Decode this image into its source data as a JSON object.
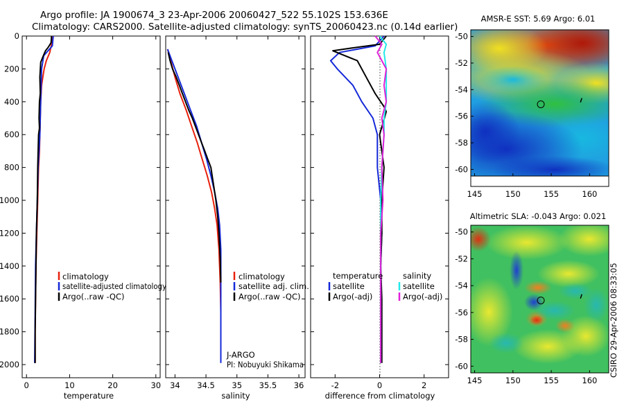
{
  "title_line1": "Argo profile: JA 1900674_3 23-Apr-2006 20060427_522 55.102S 153.636E",
  "title_line2": "Climatology: CARS2000. Satellite-adjusted climatology: synTS_20060423.nc (0.14d earlier)",
  "side_stamp": "CSIRO 29-Apr-2006 08:33:05",
  "colors": {
    "climatology": "#e8200c",
    "satellite": "#1428d8",
    "argo": "#000000",
    "sal_satellite": "#22e8e8",
    "sal_argo": "#e020d8"
  },
  "chart_data": [
    {
      "type": "line",
      "xlabel": "temperature",
      "ylabel": "",
      "xlim": [
        -1,
        31
      ],
      "ylim": [
        2080,
        0
      ],
      "xticks": [
        "0",
        "10",
        "20",
        "30"
      ],
      "yticks": [
        "0",
        "200",
        "400",
        "600",
        "800",
        "1000",
        "1200",
        "1400",
        "1600",
        "1800",
        "2000"
      ],
      "legend": [
        "climatology",
        "satellite-adjusted climatology",
        "Argo(..raw -QC)"
      ],
      "series": [
        {
          "name": "climatology",
          "color": "#e8200c",
          "x": [
            5.9,
            5.8,
            5.4,
            4.6,
            4.1,
            3.8,
            3.5,
            3.3,
            3.2,
            3.1,
            3.0,
            2.8,
            2.6,
            2.4,
            2.2,
            2.1,
            2.0,
            2.0
          ],
          "y": [
            0,
            50,
            100,
            150,
            200,
            250,
            300,
            400,
            500,
            600,
            700,
            800,
            1000,
            1200,
            1400,
            1600,
            1800,
            1990
          ]
        },
        {
          "name": "satellite-adjusted climatology",
          "color": "#1428d8",
          "x": [
            6.2,
            6.0,
            4.0,
            3.5,
            3.4,
            3.3,
            3.2,
            3.1,
            2.9,
            2.7,
            2.5,
            2.3,
            2.1,
            2.0,
            1.9
          ],
          "y": [
            0,
            60,
            120,
            200,
            300,
            400,
            500,
            600,
            700,
            800,
            1000,
            1200,
            1400,
            1700,
            1990
          ]
        },
        {
          "name": "Argo(..raw -QC)",
          "color": "#000000",
          "x": [
            5.8,
            5.7,
            5.0,
            4.4,
            3.9,
            3.3,
            3.1,
            3.2,
            3.0,
            2.9,
            3.0,
            2.8,
            2.7,
            2.6,
            2.5,
            2.3,
            2.2,
            2.1,
            2.0,
            2.0
          ],
          "y": [
            0,
            40,
            70,
            90,
            120,
            160,
            250,
            350,
            400,
            500,
            560,
            600,
            700,
            800,
            1000,
            1200,
            1400,
            1600,
            1800,
            1990
          ]
        }
      ]
    },
    {
      "type": "line",
      "xlabel": "salinity",
      "ylabel": "",
      "xlim": [
        33.85,
        36.1
      ],
      "ylim": [
        2080,
        0
      ],
      "xticks": [
        "34",
        "34.5",
        "35",
        "35.5",
        "36"
      ],
      "legend": [
        "climatology",
        "satellite adj. clim.",
        "Argo(..raw -QC)"
      ],
      "annotations": [
        "J-ARGO",
        "PI: Nobuyuki Shikama"
      ],
      "series": [
        {
          "name": "climatology",
          "color": "#e8200c",
          "x": [
            33.88,
            33.93,
            34.0,
            34.08,
            34.18,
            34.27,
            34.36,
            34.44,
            34.52,
            34.59,
            34.64,
            34.68,
            34.71,
            34.73,
            34.74
          ],
          "y": [
            80,
            150,
            250,
            350,
            450,
            550,
            650,
            750,
            850,
            950,
            1050,
            1150,
            1300,
            1500,
            1680
          ]
        },
        {
          "name": "satellite adj. clim.",
          "color": "#1428d8",
          "x": [
            33.88,
            33.95,
            34.05,
            34.15,
            34.25,
            34.35,
            34.43,
            34.51,
            34.58,
            34.64,
            34.69,
            34.72,
            34.74,
            34.74,
            34.74
          ],
          "y": [
            80,
            150,
            250,
            350,
            450,
            550,
            650,
            750,
            850,
            950,
            1050,
            1150,
            1300,
            1500,
            1990
          ]
        },
        {
          "name": "Argo(..raw -QC)",
          "color": "#000000",
          "x": [
            33.89,
            33.92,
            33.96,
            34.02,
            34.07,
            34.12,
            34.17,
            34.22,
            34.28,
            34.33,
            34.38,
            34.43,
            34.48,
            34.53,
            34.58,
            34.62,
            34.66,
            34.69,
            34.71,
            34.73,
            34.74
          ],
          "y": [
            100,
            150,
            200,
            250,
            300,
            350,
            400,
            450,
            500,
            550,
            600,
            650,
            700,
            750,
            800,
            900,
            1000,
            1100,
            1200,
            1350,
            1500
          ]
        }
      ]
    },
    {
      "type": "line",
      "xlabel": "difference from climatology",
      "ylabel": "",
      "xlim": [
        -3.1,
        3.1
      ],
      "ylim": [
        2080,
        0
      ],
      "xticks": [
        "-2",
        "0",
        "2"
      ],
      "legend": [
        "temperature",
        "satellite",
        "Argo(-adj)",
        "salinity",
        "satellite",
        "Argo(-adj)"
      ],
      "series": [
        {
          "name": "temperature satellite",
          "color": "#1428d8",
          "x": [
            0.2,
            -0.2,
            -1.8,
            -2.2,
            -1.9,
            -1.2,
            -0.8,
            -0.3,
            -0.1,
            -0.1,
            0.05,
            0.1,
            0.05,
            0.05,
            0.05,
            0.05
          ],
          "y": [
            0,
            60,
            100,
            150,
            200,
            300,
            400,
            500,
            600,
            800,
            1000,
            1200,
            1400,
            1600,
            1800,
            1990
          ]
        },
        {
          "name": "temperature Argo(-adj)",
          "color": "#000000",
          "x": [
            0.3,
            0.0,
            -1.1,
            -2.1,
            -1.0,
            -0.6,
            -0.2,
            0.2,
            0.3,
            0.0,
            0.2,
            0.1,
            0.1,
            0.05,
            0.1,
            0.1
          ],
          "y": [
            0,
            50,
            70,
            90,
            150,
            250,
            350,
            430,
            460,
            600,
            800,
            1000,
            1200,
            1400,
            1600,
            1990
          ]
        },
        {
          "name": "salinity satellite",
          "color": "#22e8e8",
          "x": [
            0.0,
            0.3,
            0.2,
            0.3,
            0.3,
            0.3,
            0.2,
            0.2,
            0.1,
            0.05,
            0.05,
            0.05
          ],
          "y": [
            0,
            50,
            100,
            200,
            300,
            400,
            500,
            600,
            800,
            1000,
            1400,
            1990
          ]
        },
        {
          "name": "salinity Argo(-adj)",
          "color": "#e020d8",
          "x": [
            -0.2,
            0.1,
            -0.1,
            0.3,
            0.2,
            0.3,
            0.1,
            0.2,
            0.1,
            0.15,
            0.05,
            0.05,
            0.05
          ],
          "y": [
            0,
            50,
            100,
            200,
            300,
            400,
            500,
            600,
            800,
            1000,
            1200,
            1600,
            1990
          ]
        }
      ]
    },
    {
      "type": "heatmap",
      "title": "AMSR-E SST: 5.69 Argo: 6.01",
      "xlim": [
        144.5,
        162.5
      ],
      "ylim": [
        -60.5,
        -49.5
      ],
      "xticks": [
        "145",
        "150",
        "155",
        "160"
      ],
      "yticks": [
        "-50",
        "-52",
        "-54",
        "-56",
        "-58",
        "-60"
      ],
      "profile_location": [
        153.636,
        -55.102
      ]
    },
    {
      "type": "heatmap",
      "title": "Altimetric SLA: -0.043 Argo: 0.021",
      "xlim": [
        144.5,
        162.5
      ],
      "ylim": [
        -60.5,
        -49.5
      ],
      "xticks": [
        "145",
        "150",
        "155",
        "160"
      ],
      "yticks": [
        "-50",
        "-52",
        "-54",
        "-56",
        "-58",
        "-60"
      ],
      "profile_location": [
        153.636,
        -55.102
      ]
    }
  ]
}
